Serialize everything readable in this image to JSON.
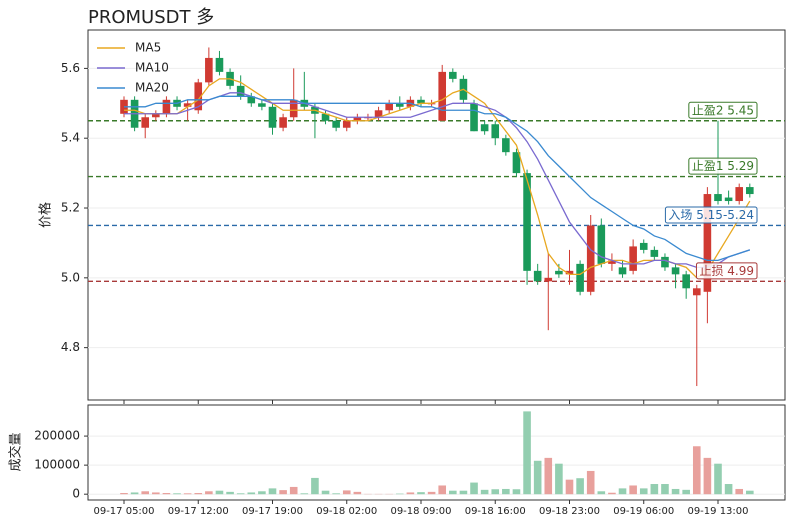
{
  "chart_data": [
    {
      "type": "candlestick",
      "title": "PROMUSDT  多",
      "ylabel": "价格",
      "categories": [
        "09-17 05:00",
        null,
        null,
        null,
        null,
        null,
        null,
        "09-17 12:00",
        null,
        null,
        null,
        null,
        null,
        null,
        "09-17 19:00",
        null,
        null,
        null,
        null,
        null,
        null,
        "09-18 02:00",
        null,
        null,
        null,
        null,
        null,
        null,
        "09-18 09:00",
        null,
        null,
        null,
        null,
        null,
        null,
        "09-18 16:00",
        null,
        null,
        null,
        null,
        null,
        null,
        "09-18 23:00",
        null,
        null,
        null,
        null,
        null,
        null,
        "09-19 06:00",
        null,
        null,
        null,
        null,
        null,
        null,
        "09-19 13:00",
        null,
        null,
        null
      ],
      "open": [
        5.47,
        5.51,
        5.43,
        5.46,
        5.47,
        5.51,
        5.49,
        5.48,
        5.56,
        5.63,
        5.59,
        5.55,
        5.52,
        5.5,
        5.49,
        5.43,
        5.46,
        5.51,
        5.49,
        5.47,
        5.45,
        5.43,
        5.45,
        5.46,
        5.46,
        5.48,
        5.5,
        5.49,
        5.51,
        5.5,
        5.45,
        5.59,
        5.57,
        5.5,
        5.44,
        5.44,
        5.4,
        5.36,
        5.3,
        5.02,
        4.99,
        5.02,
        5.01,
        5.04,
        4.96,
        5.15,
        5.04,
        5.03,
        5.02,
        5.1,
        5.08,
        5.06,
        5.03,
        5.01,
        4.95,
        4.96,
        5.24,
        5.23,
        5.22,
        5.26
      ],
      "high": [
        5.52,
        5.52,
        5.47,
        5.48,
        5.52,
        5.52,
        5.51,
        5.57,
        5.66,
        5.65,
        5.6,
        5.58,
        5.53,
        5.51,
        5.5,
        5.47,
        5.6,
        5.59,
        5.5,
        5.48,
        5.46,
        5.46,
        5.47,
        5.47,
        5.49,
        5.51,
        5.52,
        5.52,
        5.52,
        5.51,
        5.61,
        5.6,
        5.58,
        5.51,
        5.45,
        5.45,
        5.41,
        5.37,
        5.31,
        5.04,
        5.07,
        5.04,
        5.08,
        5.05,
        5.18,
        5.17,
        5.07,
        5.05,
        5.11,
        5.11,
        5.09,
        5.07,
        5.04,
        5.02,
        4.98,
        5.26,
        5.45,
        5.25,
        5.27,
        5.27
      ],
      "low": [
        5.46,
        5.42,
        5.4,
        5.45,
        5.46,
        5.48,
        5.45,
        5.47,
        5.55,
        5.58,
        5.54,
        5.51,
        5.49,
        5.48,
        5.41,
        5.42,
        5.45,
        5.48,
        5.4,
        5.44,
        5.42,
        5.42,
        5.44,
        5.45,
        5.45,
        5.47,
        5.48,
        5.48,
        5.49,
        5.49,
        5.45,
        5.56,
        5.5,
        5.42,
        5.41,
        5.38,
        5.35,
        5.29,
        4.98,
        4.98,
        4.85,
        5.0,
        4.98,
        4.95,
        4.95,
        5.03,
        5.02,
        5.0,
        5.01,
        5.07,
        5.05,
        5.02,
        4.97,
        4.94,
        4.69,
        4.87,
        5.21,
        5.21,
        5.21,
        5.23
      ],
      "close": [
        5.51,
        5.43,
        5.46,
        5.47,
        5.51,
        5.49,
        5.5,
        5.56,
        5.63,
        5.59,
        5.55,
        5.52,
        5.5,
        5.49,
        5.43,
        5.46,
        5.51,
        5.49,
        5.47,
        5.45,
        5.43,
        5.45,
        5.46,
        5.46,
        5.48,
        5.5,
        5.49,
        5.51,
        5.5,
        5.5,
        5.59,
        5.57,
        5.51,
        5.42,
        5.42,
        5.4,
        5.36,
        5.3,
        5.02,
        4.99,
        5.0,
        5.01,
        5.02,
        4.96,
        5.15,
        5.04,
        5.05,
        5.01,
        5.09,
        5.08,
        5.06,
        5.03,
        5.01,
        4.97,
        4.97,
        5.24,
        5.22,
        5.22,
        5.26,
        5.24
      ],
      "up_color": "#d03a32",
      "down_color": "#1a9a5a",
      "series": [
        {
          "name": "MA5",
          "color": "#e8a820",
          "values": [
            5.48,
            5.48,
            5.47,
            5.47,
            5.47,
            5.47,
            5.49,
            5.51,
            5.55,
            5.57,
            5.57,
            5.56,
            5.54,
            5.52,
            5.5,
            5.48,
            5.48,
            5.48,
            5.48,
            5.47,
            5.46,
            5.45,
            5.45,
            5.45,
            5.46,
            5.47,
            5.48,
            5.49,
            5.5,
            5.5,
            5.51,
            5.53,
            5.54,
            5.52,
            5.5,
            5.46,
            5.42,
            5.38,
            5.28,
            5.18,
            5.07,
            5.03,
            5.01,
            5.01,
            5.03,
            5.04,
            5.05,
            5.05,
            5.04,
            5.05,
            5.05,
            5.05,
            5.04,
            5.03,
            5.0,
            5.02,
            5.07,
            5.12,
            5.17,
            5.22
          ]
        },
        {
          "name": "MA10",
          "color": "#7a6ad0",
          "values": [
            5.47,
            5.47,
            5.47,
            5.47,
            5.47,
            5.47,
            5.48,
            5.49,
            5.51,
            5.52,
            5.53,
            5.53,
            5.52,
            5.51,
            5.5,
            5.5,
            5.5,
            5.5,
            5.49,
            5.48,
            5.47,
            5.46,
            5.46,
            5.46,
            5.46,
            5.46,
            5.46,
            5.46,
            5.47,
            5.48,
            5.49,
            5.5,
            5.5,
            5.5,
            5.49,
            5.48,
            5.46,
            5.43,
            5.39,
            5.34,
            5.28,
            5.22,
            5.16,
            5.12,
            5.08,
            5.06,
            5.05,
            5.04,
            5.04,
            5.04,
            5.05,
            5.05,
            5.04,
            5.04,
            5.03,
            5.03,
            5.04,
            5.06,
            5.07,
            5.08
          ]
        },
        {
          "name": "MA20",
          "color": "#3a8ad0",
          "values": [
            5.49,
            5.49,
            5.49,
            5.5,
            5.5,
            5.5,
            5.51,
            5.51,
            5.51,
            5.52,
            5.52,
            5.52,
            5.52,
            5.51,
            5.51,
            5.51,
            5.51,
            5.5,
            5.5,
            5.5,
            5.5,
            5.5,
            5.5,
            5.5,
            5.5,
            5.5,
            5.5,
            5.5,
            5.49,
            5.49,
            5.48,
            5.48,
            5.48,
            5.48,
            5.47,
            5.47,
            5.46,
            5.44,
            5.42,
            5.39,
            5.35,
            5.32,
            5.29,
            5.26,
            5.23,
            5.21,
            5.19,
            5.17,
            5.15,
            5.14,
            5.12,
            5.11,
            5.09,
            5.07,
            5.06,
            5.05,
            5.05,
            5.06,
            5.07,
            5.08
          ]
        }
      ],
      "levels": [
        {
          "label": "止盈2 5.45",
          "value": 5.45,
          "color": "#3a7a2a"
        },
        {
          "label": "止盈1 5.29",
          "value": 5.29,
          "color": "#3a7a2a"
        },
        {
          "label": "入场 5.15-5.24",
          "value": 5.15,
          "color": "#2a6aa8"
        },
        {
          "label": "止损 4.99",
          "value": 4.99,
          "color": "#a83a3a"
        }
      ],
      "ylim": [
        4.65,
        5.71
      ],
      "yticks": [
        4.8,
        {
          "value": 5,
          "label": "5.0"
        },
        5.2,
        5.4,
        5.6
      ],
      "grid": true,
      "legend": "upper left"
    },
    {
      "type": "bar",
      "ylabel": "成交量",
      "values": [
        4000,
        6000,
        10000,
        6000,
        4000,
        3000,
        3000,
        4000,
        10000,
        12000,
        8000,
        3000,
        6000,
        10000,
        20000,
        14000,
        25000,
        3000,
        56000,
        12000,
        3000,
        13000,
        8000,
        1000,
        1000,
        1000,
        2000,
        6000,
        7000,
        8000,
        30000,
        12000,
        12000,
        40000,
        15000,
        17000,
        18000,
        17000,
        285000,
        115000,
        125000,
        105000,
        50000,
        55000,
        80000,
        10000,
        5000,
        20000,
        30000,
        20000,
        35000,
        35000,
        18000,
        15000,
        165000,
        125000,
        105000,
        35000,
        18000,
        12000
      ],
      "up_color": "#e8a09c",
      "down_color": "#93ceb0",
      "ylim": [
        -20000,
        307000
      ],
      "yticks": [
        0,
        100000,
        200000
      ],
      "grid": true
    }
  ]
}
